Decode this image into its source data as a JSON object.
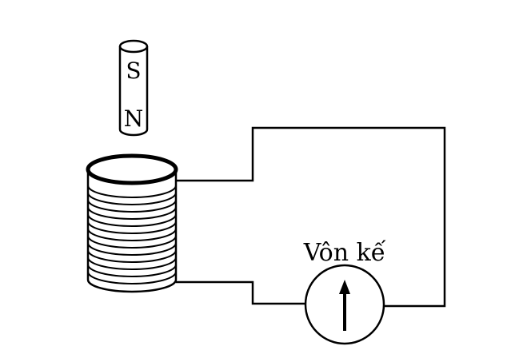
{
  "diagram": {
    "magnet": {
      "top_pole": "S",
      "bottom_pole": "N"
    },
    "voltmeter": {
      "label": "Vôn kế",
      "icon": "needle-arrow-up-icon"
    },
    "colors": {
      "ink": "#000000",
      "paper": "#ffffff"
    }
  }
}
